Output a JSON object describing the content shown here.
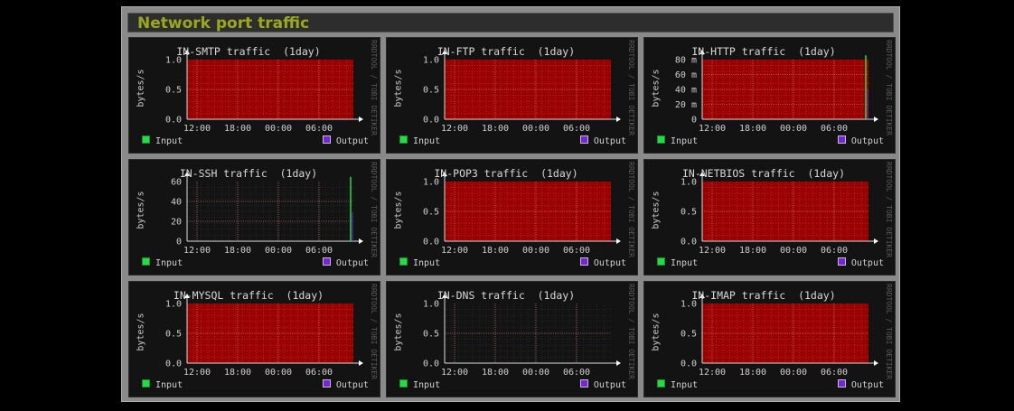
{
  "page": {
    "title": "Network port traffic"
  },
  "colors": {
    "title": "#9aa81a",
    "area": "#990000",
    "input": "#22dd44",
    "output": "#7722dd"
  },
  "legend": {
    "input": "Input",
    "output": "Output"
  },
  "side_text": "RRDTOOL / TOBI OETIKER",
  "graphs": [
    {
      "title": "IN-SMTP traffic  (1day)",
      "ylabel": "bytes/s",
      "yticks": [
        "1.0",
        "0.5",
        "0.0"
      ],
      "xticks": [
        "12:00",
        "18:00",
        "00:00",
        "06:00"
      ],
      "fill": "area"
    },
    {
      "title": "IN-FTP traffic  (1day)",
      "ylabel": "bytes/s",
      "yticks": [
        "1.0",
        "0.5",
        "0.0"
      ],
      "xticks": [
        "12:00",
        "18:00",
        "00:00",
        "06:00"
      ],
      "fill": "area"
    },
    {
      "title": "IN-HTTP traffic  (1day)",
      "ylabel": "bytes/s",
      "yticks": [
        "80 m",
        "60 m",
        "40 m",
        "20 m",
        "0"
      ],
      "xticks": [
        "12:00",
        "18:00",
        "00:00",
        "06:00"
      ],
      "fill": "area",
      "spike": 0.0859
    },
    {
      "title": "IN-SSH traffic  (1day)",
      "ylabel": "bytes/s",
      "yticks": [
        "60",
        "40",
        "20",
        "0"
      ],
      "xticks": [
        "12:00",
        "18:00",
        "00:00",
        "06:00"
      ],
      "fill": "none",
      "spike": 65
    },
    {
      "title": "IN-POP3 traffic  (1day)",
      "ylabel": "bytes/s",
      "yticks": [
        "1.0",
        "0.5",
        "0.0"
      ],
      "xticks": [
        "12:00",
        "18:00",
        "00:00",
        "06:00"
      ],
      "fill": "area"
    },
    {
      "title": "IN-NETBIOS traffic  (1day)",
      "ylabel": "bytes/s",
      "yticks": [
        "1.0",
        "0.5",
        "0.0"
      ],
      "xticks": [
        "12:00",
        "18:00",
        "00:00",
        "06:00"
      ],
      "fill": "area"
    },
    {
      "title": "IN-MYSQL traffic  (1day)",
      "ylabel": "bytes/s",
      "yticks": [
        "1.0",
        "0.5",
        "0.0"
      ],
      "xticks": [
        "12:00",
        "18:00",
        "00:00",
        "06:00"
      ],
      "fill": "area"
    },
    {
      "title": "IN-DNS traffic  (1day)",
      "ylabel": "bytes/s",
      "yticks": [
        "1.0",
        "0.5",
        "0.0"
      ],
      "xticks": [
        "12:00",
        "18:00",
        "00:00",
        "06:00"
      ],
      "fill": "none"
    },
    {
      "title": "IN-IMAP traffic  (1day)",
      "ylabel": "bytes/s",
      "yticks": [
        "1.0",
        "0.5",
        "0.0"
      ],
      "xticks": [
        "12:00",
        "18:00",
        "00:00",
        "06:00"
      ],
      "fill": "area"
    }
  ]
}
